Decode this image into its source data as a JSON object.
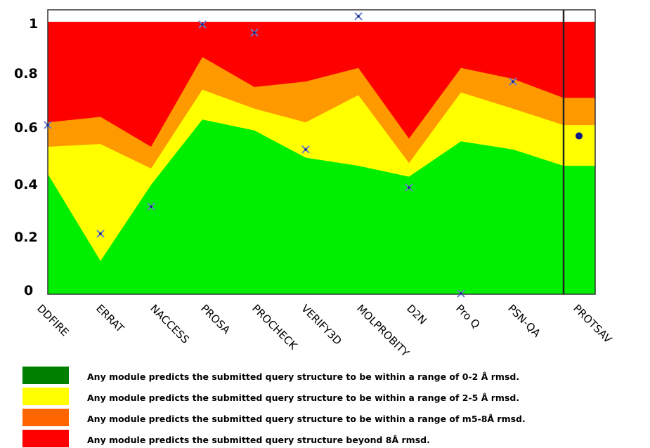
{
  "chart_data": {
    "type": "area",
    "categories": [
      "DDFIRE",
      "ERRAT",
      "NACCESS",
      "PROSA",
      "PROCHECK",
      "VERIFY3D",
      "MOLPROBITY",
      "D2N",
      "Pro Q",
      "PSN-QA",
      "PROTSAV"
    ],
    "y_tick_labels": [
      "0",
      "0.2",
      "0.4",
      "0.6",
      "0.8",
      "1"
    ],
    "ylim": [
      0,
      1
    ],
    "bands": [
      {
        "name": "green",
        "color": "#00ee00",
        "values": [
          0.44,
          0.12,
          0.4,
          0.64,
          0.6,
          0.5,
          0.47,
          0.43,
          0.56,
          0.53,
          0.47,
          0.47
        ]
      },
      {
        "name": "yellow",
        "color": "#ffff00",
        "values": [
          0.54,
          0.55,
          0.46,
          0.75,
          0.68,
          0.63,
          0.73,
          0.48,
          0.74,
          0.68,
          0.62,
          0.62
        ]
      },
      {
        "name": "orange",
        "color": "#ff9900",
        "values": [
          0.63,
          0.65,
          0.54,
          0.87,
          0.76,
          0.78,
          0.83,
          0.57,
          0.83,
          0.79,
          0.72,
          0.72
        ]
      },
      {
        "name": "red",
        "color": "#ff0000",
        "values": [
          1,
          1,
          1,
          1,
          1,
          1,
          1,
          1,
          1,
          1,
          1,
          1
        ]
      }
    ],
    "scores": [
      0.62,
      0.22,
      0.32,
      0.99,
      0.96,
      0.53,
      1.02,
      0.39,
      0.0,
      0.78
    ],
    "protsav_score": 0.58,
    "grid": false
  },
  "legend": {
    "items": [
      {
        "color": "#008000",
        "text": "Any module predicts the submitted query structure to be within a range of 0-2 Å rmsd."
      },
      {
        "color": "#ffff00",
        "text": "Any module predicts the submitted query structure to be within a range of 2-5 Å rmsd."
      },
      {
        "color": "#ff6600",
        "text": "Any module predicts the submitted query structure to be within a range of m5-8Å rmsd."
      },
      {
        "color": "#ff0000",
        "text": "Any module predicts the submitted query structure beyond 8Å rmsd."
      }
    ]
  }
}
